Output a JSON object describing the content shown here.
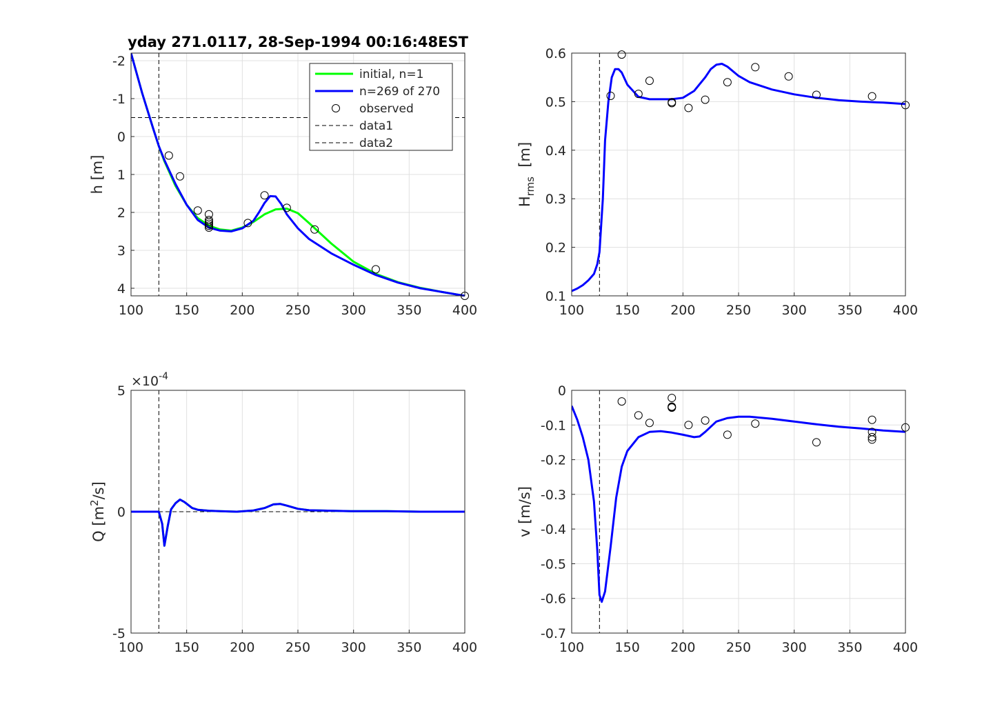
{
  "title": "yday 271.0117, 28-Sep-1994 00:16:48EST",
  "colors": {
    "initial": "#00ff00",
    "model": "#0000ff",
    "observed": "#000000",
    "grid": "#e0e0e0",
    "axis": "#262626"
  },
  "chart_data": [
    {
      "id": "h",
      "type": "line",
      "ylabel_text": "h [m]",
      "xlim": [
        100,
        400
      ],
      "ylim": [
        -2.2,
        4.2
      ],
      "y_reversed": true,
      "grid": true,
      "xticks": [
        "100",
        "150",
        "200",
        "250",
        "300",
        "350",
        "400"
      ],
      "yticks": [
        "-2",
        "-1",
        "0",
        "1",
        "2",
        "3",
        "4"
      ],
      "legend_position": "top-right",
      "legend": {
        "initial": "initial, n=1",
        "model": "n=269 of 270",
        "observed": "observed",
        "data1": "data1",
        "data2": "data2"
      },
      "ref_vline": 125,
      "ref_hline": -0.5,
      "series": [
        {
          "name": "initial, n=1",
          "role": "initial",
          "x": [
            100,
            110,
            120,
            125,
            130,
            140,
            150,
            160,
            170,
            180,
            190,
            200,
            210,
            220,
            230,
            240,
            250,
            260,
            280,
            300,
            320,
            340,
            360,
            380,
            400
          ],
          "y": [
            -2.2,
            -1.15,
            -0.2,
            0.25,
            0.65,
            1.3,
            1.8,
            2.15,
            2.35,
            2.45,
            2.48,
            2.4,
            2.25,
            2.05,
            1.92,
            1.9,
            2.02,
            2.28,
            2.82,
            3.3,
            3.62,
            3.84,
            3.99,
            4.1,
            4.2
          ]
        },
        {
          "name": "n=269 of 270",
          "role": "model",
          "x": [
            100,
            110,
            120,
            125,
            130,
            140,
            150,
            160,
            170,
            180,
            190,
            200,
            210,
            215,
            220,
            225,
            230,
            235,
            240,
            250,
            260,
            280,
            300,
            320,
            340,
            360,
            380,
            400
          ],
          "y": [
            -2.2,
            -1.15,
            -0.2,
            0.25,
            0.62,
            1.25,
            1.8,
            2.2,
            2.4,
            2.48,
            2.5,
            2.42,
            2.22,
            2.0,
            1.75,
            1.57,
            1.58,
            1.78,
            2.05,
            2.42,
            2.7,
            3.08,
            3.38,
            3.65,
            3.85,
            4.0,
            4.1,
            4.2
          ]
        }
      ],
      "observed": {
        "x": [
          134,
          144,
          160,
          170,
          170,
          170,
          170,
          170,
          170,
          205,
          220,
          240,
          265,
          320,
          400
        ],
        "y": [
          0.5,
          1.05,
          1.95,
          2.05,
          2.2,
          2.25,
          2.3,
          2.35,
          2.4,
          2.28,
          1.55,
          1.88,
          2.45,
          3.5,
          4.2
        ]
      }
    },
    {
      "id": "hrms",
      "type": "line",
      "ylabel_main": "H",
      "ylabel_sub": "rms",
      "ylabel_tail": "  [m]",
      "xlim": [
        100,
        400
      ],
      "ylim": [
        0.1,
        0.6
      ],
      "grid": true,
      "xticks": [
        "100",
        "150",
        "200",
        "250",
        "300",
        "350",
        "400"
      ],
      "yticks": [
        "0.1",
        "0.2",
        "0.3",
        "0.4",
        "0.5",
        "0.6"
      ],
      "ref_vline": 125,
      "series": [
        {
          "name": "",
          "role": "model",
          "x": [
            100,
            105,
            110,
            115,
            120,
            123,
            125,
            128,
            130,
            133,
            136,
            139,
            142,
            145,
            150,
            160,
            170,
            180,
            190,
            200,
            210,
            220,
            225,
            230,
            235,
            240,
            250,
            260,
            280,
            300,
            320,
            340,
            360,
            380,
            400
          ],
          "y": [
            0.11,
            0.115,
            0.122,
            0.132,
            0.145,
            0.165,
            0.19,
            0.3,
            0.42,
            0.5,
            0.55,
            0.567,
            0.567,
            0.56,
            0.535,
            0.51,
            0.505,
            0.505,
            0.505,
            0.508,
            0.522,
            0.55,
            0.567,
            0.576,
            0.578,
            0.572,
            0.553,
            0.54,
            0.525,
            0.515,
            0.508,
            0.503,
            0.5,
            0.498,
            0.495
          ]
        }
      ],
      "observed": {
        "x": [
          135,
          145,
          160,
          170,
          190,
          190,
          205,
          220,
          240,
          265,
          295,
          320,
          370,
          400
        ],
        "y": [
          0.512,
          0.597,
          0.516,
          0.543,
          0.497,
          0.499,
          0.487,
          0.504,
          0.54,
          0.571,
          0.552,
          0.514,
          0.511,
          0.493
        ]
      }
    },
    {
      "id": "Q",
      "type": "line",
      "ylabel_main": "Q [m",
      "ylabel_sup": "2",
      "ylabel_tail": "/s]",
      "multiplier_base": "×10",
      "multiplier_exp": "-4",
      "xlim": [
        100,
        400
      ],
      "ylim": [
        -5,
        5
      ],
      "grid": true,
      "xticks": [
        "100",
        "150",
        "200",
        "250",
        "300",
        "350",
        "400"
      ],
      "yticks": [
        "-5",
        "0",
        "5"
      ],
      "ref_vline": 125,
      "ref_hline": 0,
      "series": [
        {
          "name": "",
          "role": "initial",
          "x": [
            100,
            125,
            128,
            130,
            133,
            136,
            140,
            144,
            148,
            155,
            160,
            170,
            180,
            195,
            210,
            220,
            228,
            234,
            240,
            250,
            260,
            280,
            300,
            330,
            360,
            400
          ],
          "y": [
            0,
            0,
            -0.5,
            -1.4,
            -0.6,
            0.1,
            0.35,
            0.5,
            0.4,
            0.15,
            0.08,
            0.04,
            0.02,
            0.0,
            0.05,
            0.15,
            0.3,
            0.32,
            0.25,
            0.12,
            0.06,
            0.04,
            0.02,
            0.02,
            0.0,
            0.0
          ]
        },
        {
          "name": "",
          "role": "model",
          "x": [
            100,
            125,
            128,
            130,
            133,
            136,
            140,
            144,
            148,
            155,
            160,
            170,
            180,
            195,
            210,
            220,
            228,
            234,
            240,
            250,
            260,
            280,
            300,
            330,
            360,
            400
          ],
          "y": [
            0,
            0,
            -0.5,
            -1.4,
            -0.6,
            0.1,
            0.35,
            0.5,
            0.4,
            0.15,
            0.08,
            0.04,
            0.02,
            0.0,
            0.05,
            0.15,
            0.3,
            0.32,
            0.25,
            0.12,
            0.06,
            0.04,
            0.02,
            0.02,
            0.0,
            0.0
          ]
        }
      ]
    },
    {
      "id": "v",
      "type": "line",
      "ylabel_text": "v [m/s]",
      "xlim": [
        100,
        400
      ],
      "ylim": [
        -0.7,
        0
      ],
      "grid": true,
      "xticks": [
        "100",
        "150",
        "200",
        "250",
        "300",
        "350",
        "400"
      ],
      "yticks": [
        "-0.7",
        "-0.6",
        "-0.5",
        "-0.4",
        "-0.3",
        "-0.2",
        "-0.1",
        "0"
      ],
      "ref_vline": 125,
      "ref_hline": 0,
      "series": [
        {
          "name": "",
          "role": "model",
          "x": [
            100,
            105,
            110,
            115,
            120,
            123,
            125,
            127,
            130,
            135,
            140,
            145,
            150,
            160,
            170,
            180,
            190,
            200,
            210,
            215,
            220,
            230,
            240,
            250,
            260,
            280,
            300,
            320,
            340,
            360,
            380,
            400
          ],
          "y": [
            -0.045,
            -0.085,
            -0.135,
            -0.2,
            -0.32,
            -0.46,
            -0.59,
            -0.61,
            -0.58,
            -0.45,
            -0.31,
            -0.22,
            -0.175,
            -0.135,
            -0.12,
            -0.118,
            -0.122,
            -0.128,
            -0.135,
            -0.133,
            -0.12,
            -0.09,
            -0.08,
            -0.076,
            -0.076,
            -0.082,
            -0.09,
            -0.098,
            -0.105,
            -0.11,
            -0.116,
            -0.12
          ]
        }
      ],
      "observed": {
        "x": [
          145,
          160,
          170,
          190,
          190,
          190,
          190,
          205,
          220,
          240,
          265,
          320,
          370,
          370,
          370,
          370,
          400
        ],
        "y": [
          -0.032,
          -0.072,
          -0.094,
          -0.022,
          -0.047,
          -0.049,
          -0.05,
          -0.1,
          -0.087,
          -0.128,
          -0.096,
          -0.15,
          -0.085,
          -0.12,
          -0.135,
          -0.142,
          -0.107
        ]
      }
    }
  ]
}
